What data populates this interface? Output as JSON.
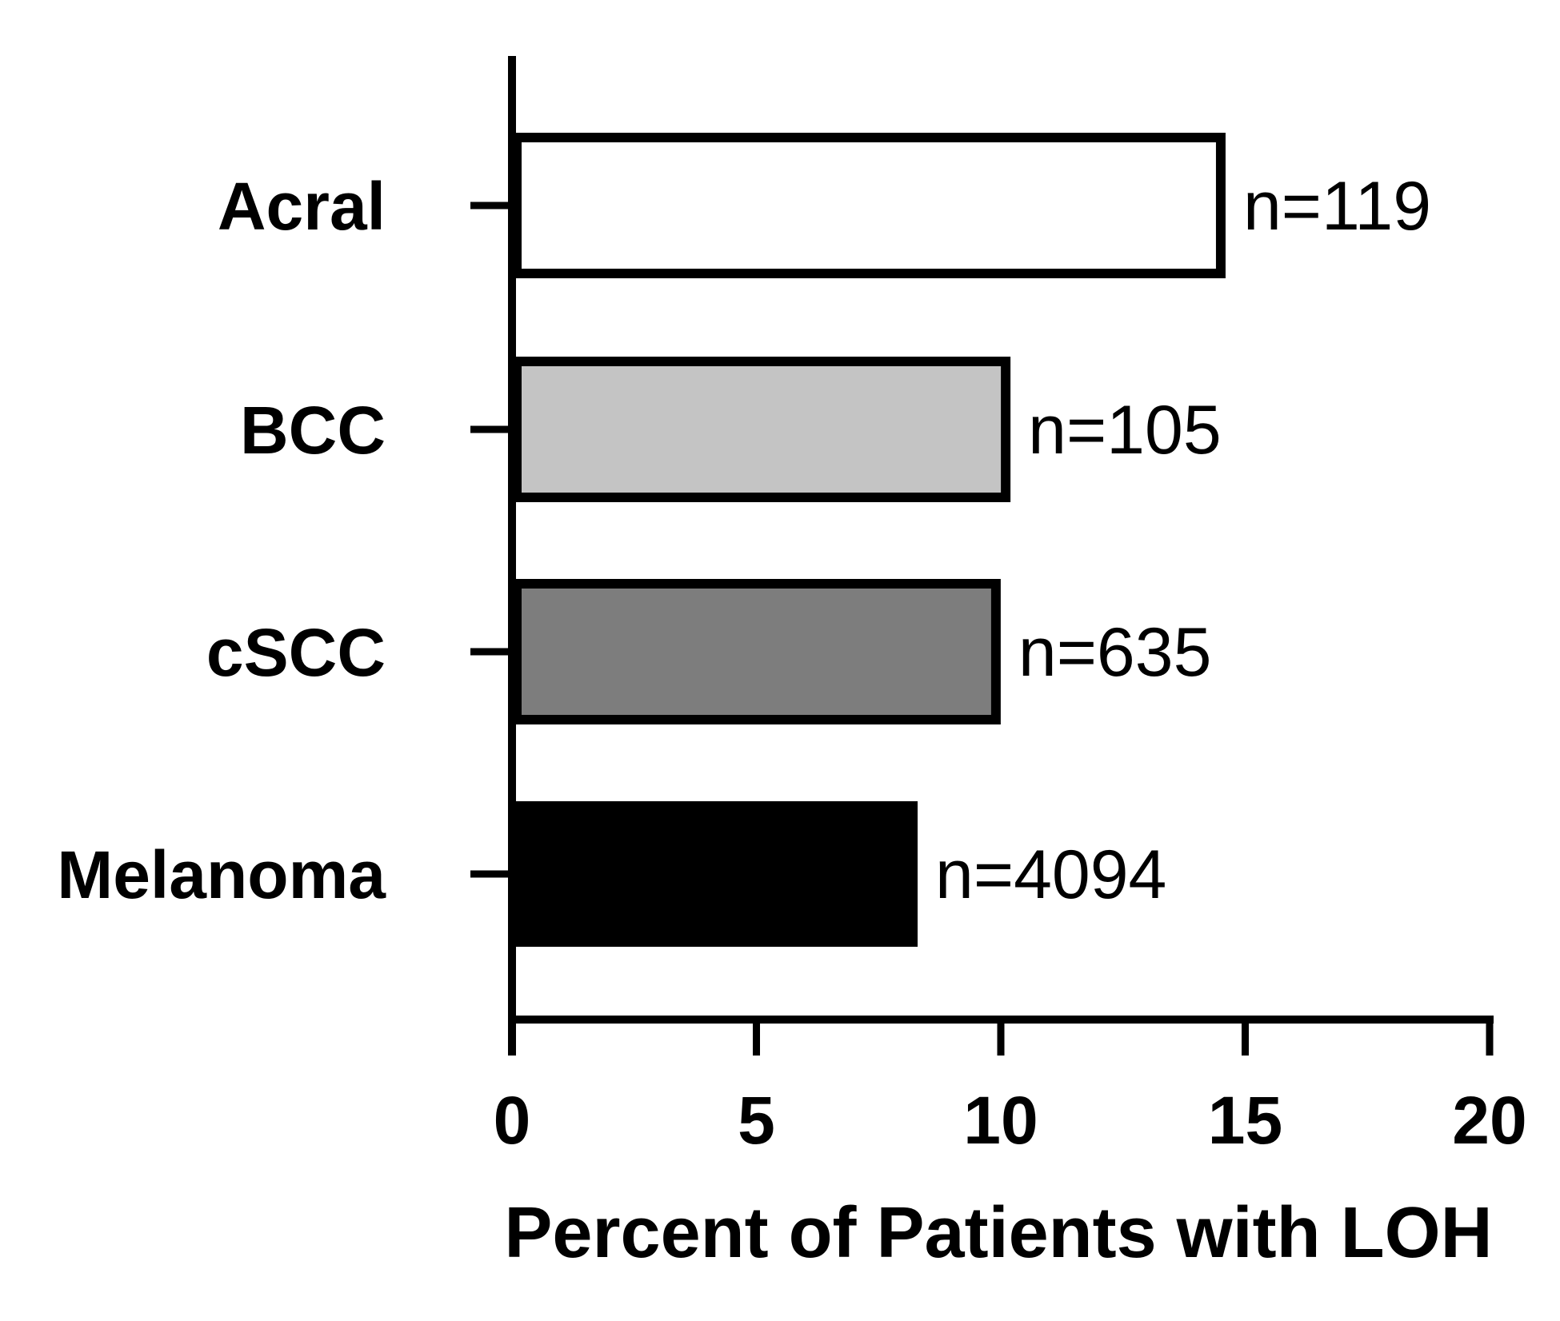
{
  "chart_data": {
    "type": "bar",
    "orientation": "horizontal",
    "categories": [
      "Acral",
      "BCC",
      "cSCC",
      "Melanoma"
    ],
    "values": [
      14.5,
      10.1,
      9.9,
      8.2
    ],
    "bar_labels": [
      "n=119",
      "n=105",
      "n=635",
      "n=4094"
    ],
    "bar_fills": [
      "#ffffff",
      "#c4c4c4",
      "#7d7d7d",
      "#000000"
    ],
    "xlabel": "Percent of Patients with LOH",
    "ylabel": "",
    "xlim": [
      0,
      20
    ],
    "xticks": [
      0,
      5,
      10,
      15,
      20
    ],
    "grid": false,
    "legend": "none"
  }
}
